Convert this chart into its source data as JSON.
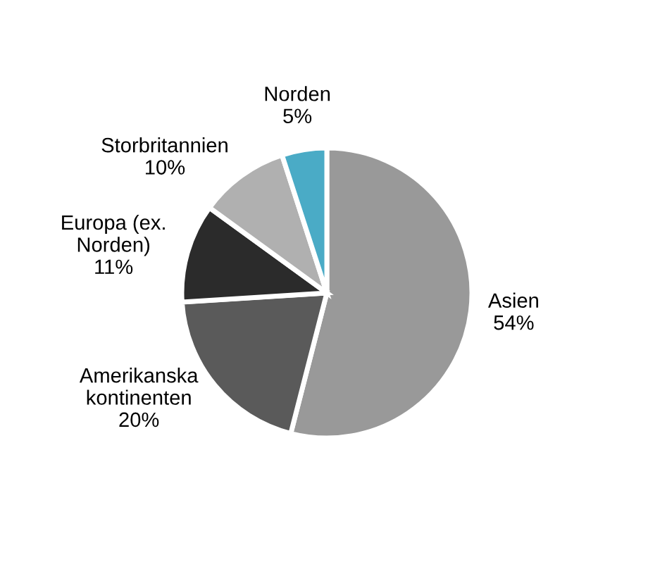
{
  "chart_data": {
    "type": "pie",
    "categories": [
      "Asien",
      "Amerikanska\nkontinenten",
      "Europa (ex.\nNorden)",
      "Storbritannien",
      "Norden"
    ],
    "values": [
      54,
      20,
      11,
      10,
      5
    ],
    "value_labels": [
      "54%",
      "20%",
      "11%",
      "10%",
      "5%"
    ],
    "colors": [
      "#999999",
      "#5a5a5a",
      "#2b2b2b",
      "#b0b0b0",
      "#4aabc6"
    ]
  }
}
